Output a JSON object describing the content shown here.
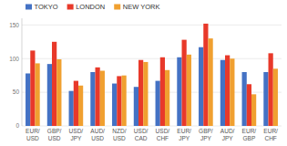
{
  "chart_data": {
    "type": "bar",
    "categories": [
      "EUR/\nUSD",
      "GBP/\nUSD",
      "USD/\nJPY",
      "AUD/\nUSD",
      "NZD/\nUSD",
      "USD/\nCAD",
      "USD/\nCHF",
      "EUR/\nJPY",
      "GBP/\nJPY",
      "AUD/\nJPY",
      "EUR/\nGBP",
      "EUR/\nCHF"
    ],
    "series": [
      {
        "name": "TOKYO",
        "color": "#4472C4",
        "values": [
          78,
          92,
          52,
          80,
          63,
          58,
          67,
          102,
          117,
          98,
          80,
          80
        ]
      },
      {
        "name": "LONDON",
        "color": "#E8392A",
        "values": [
          112,
          125,
          67,
          87,
          74,
          98,
          102,
          128,
          152,
          105,
          62,
          108
        ]
      },
      {
        "name": "NEW YORK",
        "color": "#F0A030",
        "values": [
          93,
          99,
          60,
          82,
          75,
          95,
          83,
          106,
          130,
          100,
          47,
          85
        ]
      }
    ],
    "ylim": [
      0,
      160
    ],
    "yticks": [
      0,
      50,
      100,
      150
    ],
    "grid": true,
    "legend": "upper left"
  }
}
